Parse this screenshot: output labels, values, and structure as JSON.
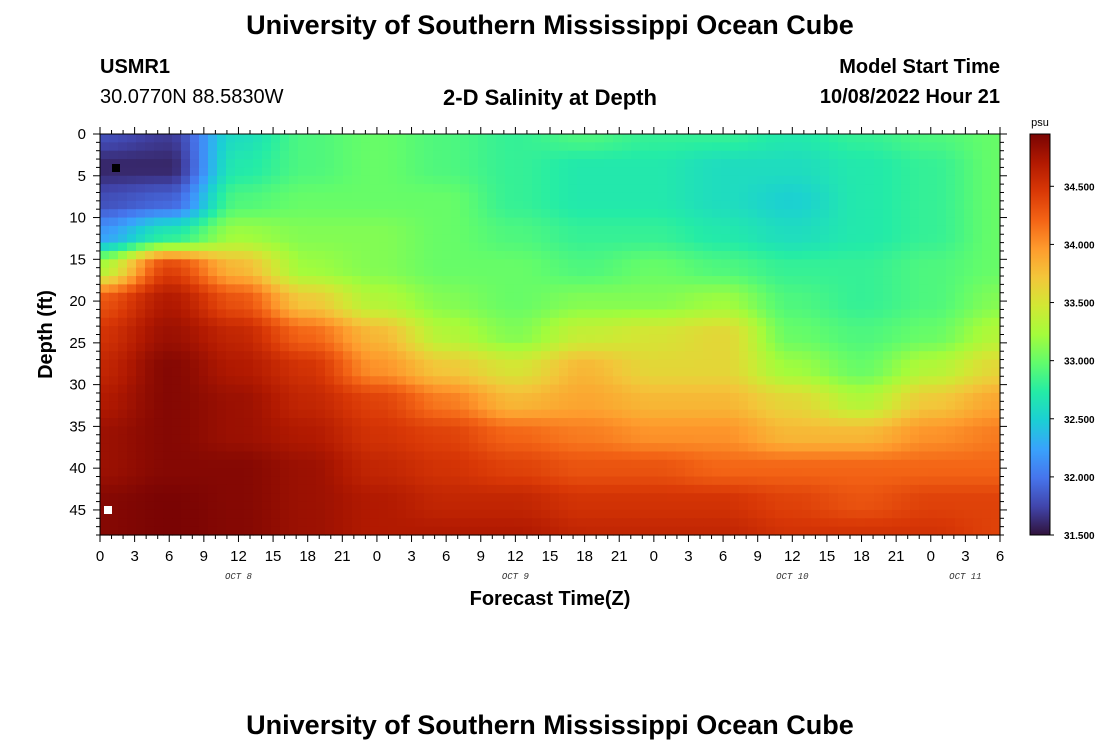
{
  "header": {
    "title": "University of Southern Mississippi Ocean Cube",
    "station_id": "USMR1",
    "coordinates": "30.0770N  88.5830W",
    "plot_title": "2-D Salinity at Depth",
    "model_start_label": "Model Start Time",
    "model_start_value": "10/08/2022 Hour 21",
    "footer_title": "University of Southern Mississippi Ocean Cube"
  },
  "chart_data": {
    "type": "heatmap",
    "title": "2-D Salinity at Depth",
    "xlabel": "Forecast Time(Z)",
    "ylabel": "Depth (ft)",
    "x_tick_labels": [
      "0",
      "3",
      "6",
      "9",
      "12",
      "15",
      "18",
      "21",
      "0",
      "3",
      "6",
      "9",
      "12",
      "15",
      "18",
      "21",
      "0",
      "3",
      "6",
      "9",
      "12",
      "15",
      "18",
      "21",
      "0",
      "3",
      "6"
    ],
    "x_day_labels": [
      {
        "label": "OCT 8",
        "hour": 12
      },
      {
        "label": "OCT 9",
        "hour": 36
      },
      {
        "label": "OCT 10",
        "hour": 60
      },
      {
        "label": "OCT 11",
        "hour": 75
      }
    ],
    "xlim_hours": [
      0,
      78
    ],
    "y_ticks": [
      0,
      5,
      10,
      15,
      20,
      25,
      30,
      35,
      40,
      45
    ],
    "ylim": [
      0,
      48
    ],
    "y_inverted": true,
    "colorbar": {
      "unit": "psu",
      "range": [
        31.5,
        34.95
      ],
      "tick_values": [
        31.5,
        32.0,
        32.5,
        33.0,
        33.5,
        34.0,
        34.5
      ],
      "tick_labels": [
        "31.500",
        "32.000",
        "32.500",
        "33.000",
        "33.500",
        "34.000",
        "34.500"
      ],
      "colors": [
        "#30123b",
        "#4145ab",
        "#4675ed",
        "#39a2fc",
        "#1bcfd4",
        "#24eca6",
        "#61fc6c",
        "#a4fc3b",
        "#d1e834",
        "#f3c63a",
        "#fe9b2d",
        "#f36315",
        "#d93806",
        "#b11901",
        "#7a0403"
      ]
    },
    "salinity_fields": {
      "grid_hours": [
        0,
        6,
        12,
        18,
        24,
        30,
        36,
        42,
        48,
        54,
        60,
        66,
        72,
        78
      ],
      "grid_depths_ft": [
        0,
        4,
        8,
        12,
        16,
        20,
        24,
        28,
        32,
        36,
        40,
        44,
        48
      ],
      "values": [
        [
          31.8,
          31.7,
          32.6,
          32.9,
          33.0,
          32.9,
          32.8,
          32.9,
          32.8,
          32.8,
          32.7,
          32.8,
          32.9,
          33.0
        ],
        [
          31.6,
          31.6,
          32.7,
          32.9,
          33.0,
          32.9,
          32.8,
          32.7,
          32.7,
          32.6,
          32.6,
          32.7,
          32.8,
          33.0
        ],
        [
          31.8,
          31.9,
          32.9,
          33.0,
          33.0,
          33.0,
          32.8,
          32.7,
          32.7,
          32.6,
          32.5,
          32.7,
          32.8,
          33.0
        ],
        [
          32.2,
          32.7,
          33.2,
          33.1,
          33.1,
          33.0,
          32.9,
          32.8,
          32.8,
          32.7,
          32.6,
          32.7,
          32.8,
          33.0
        ],
        [
          33.3,
          34.4,
          33.8,
          33.2,
          33.1,
          33.0,
          33.0,
          32.9,
          33.0,
          32.9,
          32.8,
          32.8,
          32.9,
          33.0
        ],
        [
          34.3,
          34.7,
          34.3,
          33.7,
          33.3,
          33.1,
          33.0,
          33.1,
          33.1,
          33.2,
          32.9,
          32.8,
          32.9,
          33.1
        ],
        [
          34.5,
          34.8,
          34.6,
          34.2,
          33.8,
          33.3,
          33.1,
          33.4,
          33.5,
          33.6,
          33.0,
          32.9,
          33.0,
          33.3
        ],
        [
          34.6,
          34.9,
          34.7,
          34.5,
          34.0,
          33.7,
          33.5,
          33.8,
          33.6,
          33.6,
          33.2,
          33.0,
          33.3,
          33.6
        ],
        [
          34.7,
          34.9,
          34.8,
          34.6,
          34.4,
          34.1,
          33.8,
          33.9,
          33.8,
          33.8,
          33.6,
          33.3,
          33.7,
          33.9
        ],
        [
          34.8,
          34.9,
          34.8,
          34.7,
          34.5,
          34.4,
          34.2,
          34.1,
          34.0,
          34.0,
          33.8,
          33.8,
          34.0,
          34.1
        ],
        [
          34.8,
          34.9,
          34.9,
          34.8,
          34.6,
          34.5,
          34.4,
          34.3,
          34.3,
          34.2,
          34.2,
          34.2,
          34.2,
          34.2
        ],
        [
          34.9,
          34.95,
          34.9,
          34.8,
          34.7,
          34.6,
          34.6,
          34.5,
          34.5,
          34.5,
          34.4,
          34.3,
          34.4,
          34.4
        ],
        [
          34.9,
          34.95,
          34.9,
          34.8,
          34.7,
          34.7,
          34.7,
          34.6,
          34.6,
          34.6,
          34.5,
          34.5,
          34.5,
          34.4
        ]
      ]
    },
    "grid": false
  }
}
